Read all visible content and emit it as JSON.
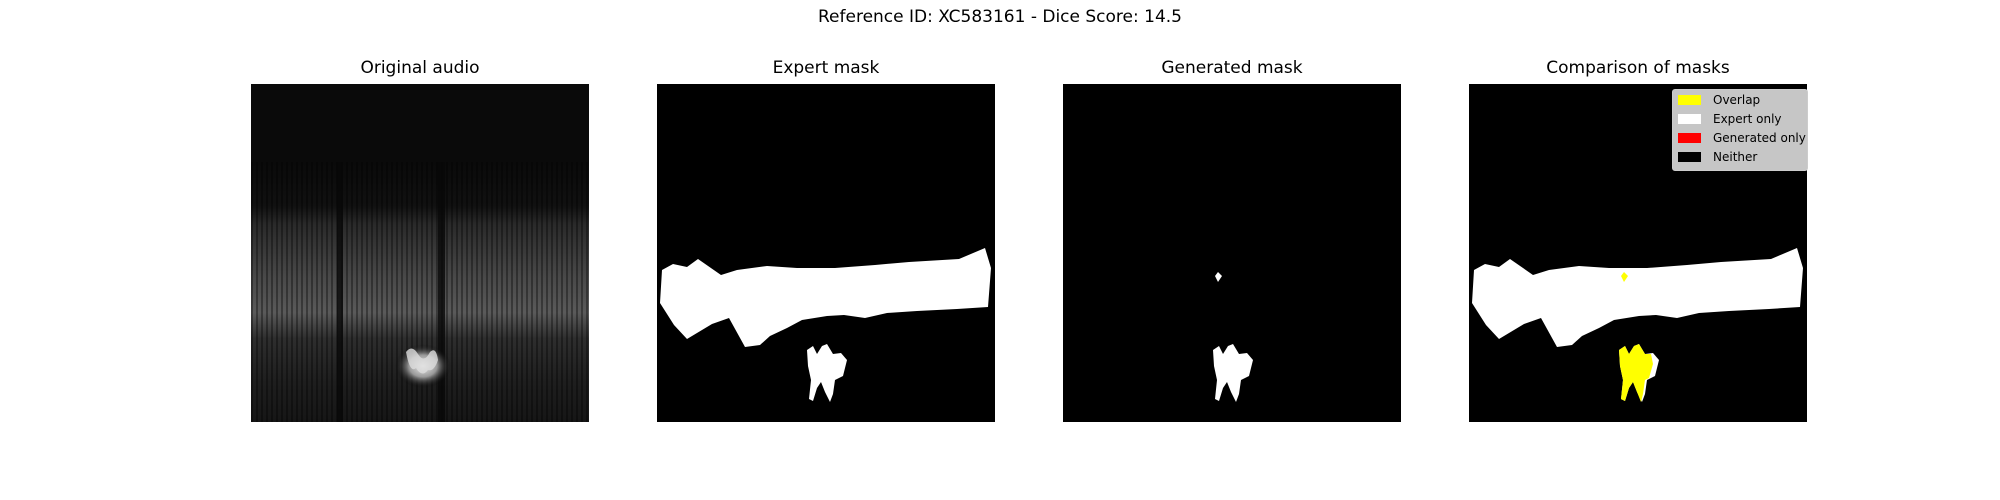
{
  "figure": {
    "suptitle": "Reference ID: XC583161 - Dice Score: 14.5"
  },
  "panels": [
    {
      "title": "Original audio"
    },
    {
      "title": "Expert mask"
    },
    {
      "title": "Generated mask"
    },
    {
      "title": "Comparison of masks"
    }
  ],
  "legend": {
    "items": [
      {
        "label": "Overlap",
        "color": "#ffff00"
      },
      {
        "label": "Expert only",
        "color": "#ffffff"
      },
      {
        "label": "Generated only",
        "color": "#ff0000"
      },
      {
        "label": "Neither",
        "color": "#000000"
      }
    ]
  },
  "colors": {
    "mask": "#ffffff",
    "overlap": "#ffff00",
    "background": "#000000"
  }
}
